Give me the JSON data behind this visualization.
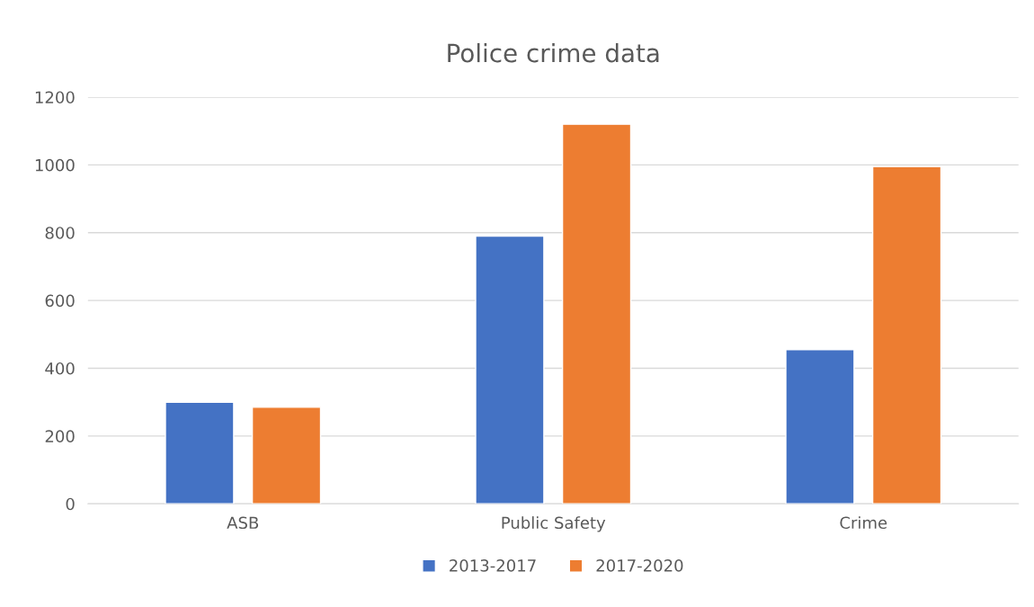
{
  "chart_data": {
    "type": "bar",
    "title": "Police crime data",
    "categories": [
      "ASB",
      "Public Safety",
      "Crime"
    ],
    "series": [
      {
        "name": "2013-2017",
        "color": "#4472c4",
        "values": [
          300,
          790,
          455
        ]
      },
      {
        "name": "2017-2020",
        "color": "#ed7d31",
        "values": [
          285,
          1120,
          995
        ]
      }
    ],
    "ylim": [
      0,
      1200
    ],
    "yticks": [
      0,
      200,
      400,
      600,
      800,
      1000,
      1200
    ],
    "grid": "y",
    "legend": "bottom"
  }
}
